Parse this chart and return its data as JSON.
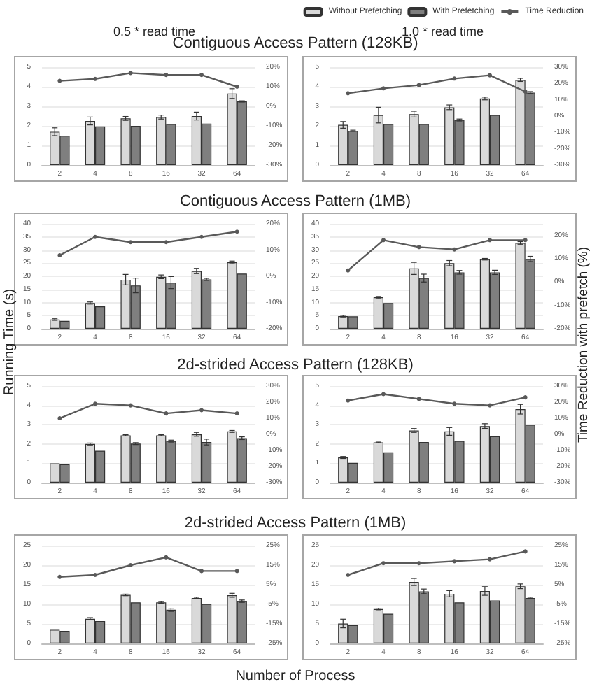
{
  "chart_data": [
    {
      "type": "bar",
      "title": "Contiguous Access Pattern (128KB)",
      "subtitle": "0.5 * read time",
      "categories": [
        "2",
        "4",
        "8",
        "16",
        "32",
        "64"
      ],
      "series": [
        {
          "color": "#d9d9d9",
          "values": [
            1.7,
            2.25,
            2.38,
            2.45,
            2.5,
            3.65
          ],
          "errors": [
            0.2,
            0.2,
            0.1,
            0.1,
            0.2,
            0.25
          ]
        },
        {
          "color": "#7f7f7f",
          "values": [
            1.5,
            1.97,
            2.0,
            2.1,
            2.12,
            3.25
          ],
          "errors": [
            null,
            null,
            null,
            null,
            null,
            0.03
          ]
        },
        {
          "type": "line",
          "axis": "y2",
          "color": "#595959",
          "marker": "circle",
          "values": [
            13,
            14,
            17,
            16,
            16,
            10
          ]
        }
      ],
      "ylim": [
        0,
        5
      ],
      "yticks": [
        0,
        1,
        2,
        3,
        4,
        5
      ],
      "y2lim": [
        -30,
        20
      ],
      "y2ticks": [
        {
          "value": -30,
          "label": "-30%"
        },
        {
          "value": -20,
          "label": "-20%"
        },
        {
          "value": -10,
          "label": "-10%"
        },
        {
          "value": 0,
          "label": "0%"
        },
        {
          "value": 10,
          "label": "10%"
        },
        {
          "value": 20,
          "label": "20%"
        }
      ],
      "grid": "y"
    },
    {
      "type": "bar",
      "subtitle": "1.0 * read time",
      "legend": "top right",
      "categories": [
        "2",
        "4",
        "8",
        "16",
        "32",
        "64"
      ],
      "series": [
        {
          "name": "Without Prefetching",
          "color": "#d9d9d9",
          "values": [
            2.05,
            2.55,
            2.6,
            2.95,
            3.4,
            4.35
          ],
          "errors": [
            0.17,
            0.4,
            0.15,
            0.12,
            0.07,
            0.08
          ]
        },
        {
          "name": "With Prefetching",
          "color": "#7f7f7f",
          "values": [
            1.75,
            2.1,
            2.1,
            2.3,
            2.55,
            3.7
          ],
          "errors": [
            0.03,
            null,
            null,
            0.05,
            null,
            0.05
          ]
        },
        {
          "name": "Time Reduction",
          "type": "line",
          "axis": "y2",
          "color": "#595959",
          "marker": "circle",
          "values": [
            14,
            17,
            19,
            23,
            25,
            15
          ]
        }
      ],
      "ylim": [
        0,
        5
      ],
      "yticks": [
        0,
        1,
        2,
        3,
        4,
        5
      ],
      "y2lim": [
        -30,
        30
      ],
      "y2ticks": [
        {
          "value": -30,
          "label": "-30%"
        },
        {
          "value": -20,
          "label": "-20%"
        },
        {
          "value": -10,
          "label": "-10%"
        },
        {
          "value": 0,
          "label": "0%"
        },
        {
          "value": 10,
          "label": "10%"
        },
        {
          "value": 20,
          "label": "20%"
        },
        {
          "value": 30,
          "label": "30%"
        }
      ],
      "grid": "y"
    },
    {
      "type": "bar",
      "title": "Contiguous Access Pattern (1MB)",
      "ylabel": "Running Time (s)",
      "categories": [
        "2",
        "4",
        "8",
        "16",
        "32",
        "64"
      ],
      "series": [
        {
          "color": "#d9d9d9",
          "values": [
            3.5,
            9.8,
            18.7,
            19.8,
            22,
            25.3
          ],
          "errors": [
            0.3,
            0.4,
            2,
            0.7,
            1,
            0.5
          ]
        },
        {
          "color": "#7f7f7f",
          "values": [
            3,
            8.5,
            16.5,
            17.6,
            18.8,
            21
          ],
          "errors": [
            null,
            null,
            2.8,
            2.3,
            0.4,
            null
          ]
        },
        {
          "type": "line",
          "axis": "y2",
          "color": "#595959",
          "marker": "circle",
          "values": [
            8,
            15,
            13,
            13,
            15,
            17
          ]
        }
      ],
      "ylim": [
        0,
        40
      ],
      "yticks": [
        0,
        5,
        10,
        15,
        20,
        25,
        30,
        35,
        40
      ],
      "y2lim": [
        -20,
        20
      ],
      "y2ticks": [
        {
          "value": -20,
          "label": "-20%"
        },
        {
          "value": -10,
          "label": "-10%"
        },
        {
          "value": 0,
          "label": "0%"
        },
        {
          "value": 10,
          "label": "10%"
        },
        {
          "value": 20,
          "label": "20%"
        }
      ],
      "grid": "y"
    },
    {
      "type": "bar",
      "y2label": "Time Reduction with prefetch (%)",
      "categories": [
        "2",
        "4",
        "8",
        "16",
        "32",
        "64"
      ],
      "series": [
        {
          "color": "#d9d9d9",
          "values": [
            4.8,
            12,
            23,
            25,
            26.5,
            32.7
          ],
          "errors": [
            0.3,
            0.3,
            2.3,
            1,
            0.3,
            0.5
          ]
        },
        {
          "color": "#7f7f7f",
          "values": [
            4.7,
            9.8,
            19.3,
            21.5,
            21.5,
            26.6
          ],
          "errors": [
            null,
            null,
            1.5,
            0.7,
            0.8,
            1
          ]
        },
        {
          "type": "line",
          "axis": "y2",
          "color": "#595959",
          "marker": "circle",
          "values": [
            5,
            18,
            15,
            14,
            18,
            18
          ]
        }
      ],
      "ylim": [
        0,
        40
      ],
      "yticks": [
        0,
        5,
        10,
        15,
        20,
        25,
        30,
        35,
        40
      ],
      "y2lim": [
        -20,
        25
      ],
      "y2ticks": [
        {
          "value": -20,
          "label": "-20%"
        },
        {
          "value": -10,
          "label": "-10%"
        },
        {
          "value": 0,
          "label": "0%"
        },
        {
          "value": 10,
          "label": "10%"
        },
        {
          "value": 20,
          "label": "20%"
        }
      ],
      "grid": "y"
    },
    {
      "type": "bar",
      "title": "2d-strided Access Pattern (128KB)",
      "categories": [
        "2",
        "4",
        "8",
        "16",
        "32",
        "64"
      ],
      "series": [
        {
          "color": "#d9d9d9",
          "values": [
            1.0,
            2.0,
            2.45,
            2.45,
            2.5,
            2.65
          ],
          "errors": [
            null,
            0.05,
            0.03,
            0.03,
            0.1,
            0.05
          ]
        },
        {
          "color": "#7f7f7f",
          "values": [
            0.95,
            1.65,
            2.02,
            2.15,
            2.1,
            2.3
          ],
          "errors": [
            null,
            null,
            0.05,
            0.05,
            0.15,
            0.07
          ]
        },
        {
          "type": "line",
          "axis": "y2",
          "color": "#595959",
          "marker": "circle",
          "values": [
            10,
            19,
            18,
            13,
            15,
            13
          ]
        }
      ],
      "ylim": [
        0,
        5
      ],
      "yticks": [
        0,
        1,
        2,
        3,
        4,
        5
      ],
      "y2lim": [
        -30,
        30
      ],
      "y2ticks": [
        {
          "value": -30,
          "label": "-30%"
        },
        {
          "value": -20,
          "label": "-20%"
        },
        {
          "value": -10,
          "label": "-10%"
        },
        {
          "value": 0,
          "label": "0%"
        },
        {
          "value": 10,
          "label": "10%"
        },
        {
          "value": 20,
          "label": "20%"
        },
        {
          "value": 30,
          "label": "30%"
        }
      ],
      "grid": "y"
    },
    {
      "type": "bar",
      "categories": [
        "2",
        "4",
        "8",
        "16",
        "32",
        "64"
      ],
      "series": [
        {
          "color": "#d9d9d9",
          "values": [
            1.3,
            2.08,
            2.7,
            2.65,
            2.93,
            3.8
          ],
          "errors": [
            0.05,
            0.02,
            0.1,
            0.2,
            0.12,
            0.25
          ]
        },
        {
          "color": "#7f7f7f",
          "values": [
            1.02,
            1.57,
            2.1,
            2.15,
            2.4,
            3.0
          ],
          "errors": [
            null,
            null,
            null,
            null,
            null,
            null
          ]
        },
        {
          "type": "line",
          "axis": "y2",
          "color": "#595959",
          "marker": "circle",
          "values": [
            21,
            25,
            22,
            19,
            18,
            23
          ]
        }
      ],
      "ylim": [
        0,
        5
      ],
      "yticks": [
        0,
        1,
        2,
        3,
        4,
        5
      ],
      "y2lim": [
        -30,
        30
      ],
      "y2ticks": [
        {
          "value": -30,
          "label": "-30%"
        },
        {
          "value": -20,
          "label": "-20%"
        },
        {
          "value": -10,
          "label": "-10%"
        },
        {
          "value": 0,
          "label": "0%"
        },
        {
          "value": 10,
          "label": "10%"
        },
        {
          "value": 20,
          "label": "20%"
        },
        {
          "value": 30,
          "label": "30%"
        }
      ],
      "grid": "y"
    },
    {
      "type": "bar",
      "title": "2d-strided Access Pattern (1MB)",
      "xlabel": "Number of Process",
      "categories": [
        "2",
        "4",
        "8",
        "16",
        "32",
        "64"
      ],
      "series": [
        {
          "color": "#d9d9d9",
          "values": [
            3.5,
            6.3,
            12.4,
            10.5,
            11.6,
            12.3
          ],
          "errors": [
            null,
            0.3,
            0.2,
            0.2,
            0.2,
            0.5
          ]
        },
        {
          "color": "#7f7f7f",
          "values": [
            3.2,
            5.7,
            10.5,
            8.6,
            10.1,
            10.8
          ],
          "errors": [
            null,
            null,
            null,
            0.4,
            null,
            0.3
          ]
        },
        {
          "type": "line",
          "axis": "y2",
          "color": "#595959",
          "marker": "circle",
          "values": [
            9,
            10,
            15,
            19,
            12,
            12
          ]
        }
      ],
      "ylim": [
        0,
        25
      ],
      "yticks": [
        0,
        5,
        10,
        15,
        20,
        25
      ],
      "y2lim": [
        -25,
        25
      ],
      "y2ticks": [
        {
          "value": -25,
          "label": "-25%"
        },
        {
          "value": -15,
          "label": "-15%"
        },
        {
          "value": -5,
          "label": "-5%"
        },
        {
          "value": 5,
          "label": "5%"
        },
        {
          "value": 15,
          "label": "15%"
        },
        {
          "value": 25,
          "label": "25%"
        }
      ],
      "grid": "y"
    },
    {
      "type": "bar",
      "categories": [
        "2",
        "4",
        "8",
        "16",
        "32",
        "64"
      ],
      "series": [
        {
          "color": "#d9d9d9",
          "values": [
            5.1,
            8.8,
            15.7,
            12.7,
            13.4,
            14.6
          ],
          "errors": [
            1.1,
            0.2,
            0.9,
            0.8,
            1.1,
            0.6
          ]
        },
        {
          "color": "#7f7f7f",
          "values": [
            4.7,
            7.6,
            13.3,
            10.5,
            11.0,
            11.6
          ],
          "errors": [
            null,
            null,
            0.6,
            null,
            null,
            0.2
          ]
        },
        {
          "type": "line",
          "axis": "y2",
          "color": "#595959",
          "marker": "circle",
          "values": [
            10,
            16,
            16,
            17,
            18,
            22
          ]
        }
      ],
      "ylim": [
        0,
        25
      ],
      "yticks": [
        0,
        5,
        10,
        15,
        20,
        25
      ],
      "y2lim": [
        -25,
        25
      ],
      "y2ticks": [
        {
          "value": -25,
          "label": "-25%"
        },
        {
          "value": -15,
          "label": "-15%"
        },
        {
          "value": -5,
          "label": "-5%"
        },
        {
          "value": 5,
          "label": "5%"
        },
        {
          "value": 15,
          "label": "15%"
        },
        {
          "value": 25,
          "label": "25%"
        }
      ],
      "grid": "y"
    }
  ]
}
